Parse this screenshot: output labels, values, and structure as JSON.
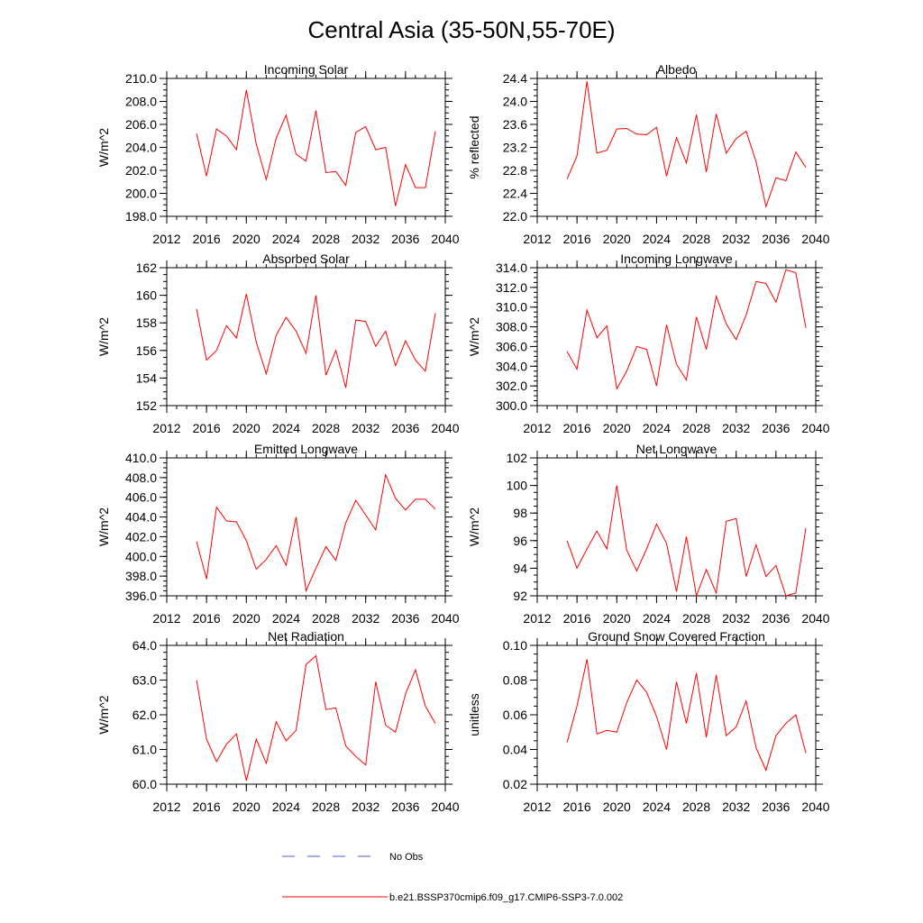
{
  "figure": {
    "title": "Central Asia (35-50N,55-70E)",
    "line_color": "#ff0000",
    "obs_color": "#4d5dd6"
  },
  "legend": {
    "items": [
      {
        "label": "No Obs",
        "style": "dashed",
        "color": "#4d5dd6"
      },
      {
        "label": "b.e21.BSSP370cmip6.f09_g17.CMIP6-SSP3-7.0.002",
        "style": "solid",
        "color": "#ff0000"
      }
    ]
  },
  "chart_data": [
    {
      "type": "line",
      "title": "Incoming Solar",
      "xlabel": "",
      "ylabel": "W/m^2",
      "xlim": [
        2012,
        2040
      ],
      "ylim": [
        198,
        210
      ],
      "xticks": [
        2012,
        2016,
        2020,
        2024,
        2028,
        2032,
        2036,
        2040
      ],
      "xtick_labels": [
        "2012",
        "2016",
        "2020",
        "2024",
        "2028",
        "2032",
        "2036",
        "2040"
      ],
      "yticks": [
        198,
        200,
        202,
        204,
        206,
        208,
        210
      ],
      "ytick_labels": [
        "198.0",
        "200.0",
        "202.0",
        "204.0",
        "206.0",
        "208.0",
        "210.0"
      ],
      "yminor": 0.5,
      "x": [
        2015,
        2016,
        2017,
        2018,
        2019,
        2020,
        2021,
        2022,
        2023,
        2024,
        2025,
        2026,
        2027,
        2028,
        2029,
        2030,
        2031,
        2032,
        2033,
        2034,
        2035,
        2036,
        2037,
        2038,
        2039
      ],
      "series": [
        {
          "name": "b.e21.BSSP370cmip6.f09_g17.CMIP6-SSP3-7.0.002",
          "values": [
            205.2,
            201.5,
            205.6,
            205.0,
            203.8,
            209.0,
            204.3,
            201.2,
            204.8,
            206.8,
            203.4,
            202.8,
            207.2,
            201.8,
            201.9,
            200.7,
            205.3,
            205.8,
            203.8,
            204.0,
            198.9,
            202.5,
            200.5,
            200.5,
            205.4
          ]
        }
      ]
    },
    {
      "type": "line",
      "title": "Albedo",
      "xlabel": "",
      "ylabel": "% reflected",
      "xlim": [
        2012,
        2040
      ],
      "ylim": [
        22.0,
        24.4
      ],
      "xticks": [
        2012,
        2016,
        2020,
        2024,
        2028,
        2032,
        2036,
        2040
      ],
      "xtick_labels": [
        "2012",
        "2016",
        "2020",
        "2024",
        "2028",
        "2032",
        "2036",
        "2040"
      ],
      "yticks": [
        22.0,
        22.4,
        22.8,
        23.2,
        23.6,
        24.0,
        24.4
      ],
      "ytick_labels": [
        "22.0",
        "22.4",
        "22.8",
        "23.2",
        "23.6",
        "24.0",
        "24.4"
      ],
      "yminor": 0.1,
      "x": [
        2015,
        2016,
        2017,
        2018,
        2019,
        2020,
        2021,
        2022,
        2023,
        2024,
        2025,
        2026,
        2027,
        2028,
        2029,
        2030,
        2031,
        2032,
        2033,
        2034,
        2035,
        2036,
        2037,
        2038,
        2039
      ],
      "series": [
        {
          "name": "b.e21.BSSP370cmip6.f09_g17.CMIP6-SSP3-7.0.002",
          "values": [
            22.65,
            23.05,
            24.35,
            23.1,
            23.15,
            23.52,
            23.53,
            23.43,
            23.42,
            23.55,
            22.7,
            23.37,
            22.93,
            23.77,
            22.77,
            23.78,
            23.1,
            23.35,
            23.48,
            22.95,
            22.17,
            22.67,
            22.62,
            23.12,
            22.85
          ]
        }
      ]
    },
    {
      "type": "line",
      "title": "Absorbed Solar",
      "xlabel": "",
      "ylabel": "W/m^2",
      "xlim": [
        2012,
        2040
      ],
      "ylim": [
        152,
        162
      ],
      "xticks": [
        2012,
        2016,
        2020,
        2024,
        2028,
        2032,
        2036,
        2040
      ],
      "xtick_labels": [
        "2012",
        "2016",
        "2020",
        "2024",
        "2028",
        "2032",
        "2036",
        "2040"
      ],
      "yticks": [
        152,
        154,
        156,
        158,
        160,
        162
      ],
      "ytick_labels": [
        "152",
        "154",
        "156",
        "158",
        "160",
        "162"
      ],
      "yminor": 0.5,
      "x": [
        2015,
        2016,
        2017,
        2018,
        2019,
        2020,
        2021,
        2022,
        2023,
        2024,
        2025,
        2026,
        2027,
        2028,
        2029,
        2030,
        2031,
        2032,
        2033,
        2034,
        2035,
        2036,
        2037,
        2038,
        2039
      ],
      "series": [
        {
          "name": "b.e21.BSSP370cmip6.f09_g17.CMIP6-SSP3-7.0.002",
          "values": [
            159.0,
            155.3,
            156.0,
            157.8,
            156.9,
            160.1,
            156.6,
            154.3,
            157.1,
            158.4,
            157.4,
            155.8,
            160.0,
            154.2,
            156.0,
            153.3,
            158.2,
            158.1,
            156.3,
            157.4,
            154.9,
            156.7,
            155.3,
            154.5,
            158.7
          ]
        }
      ]
    },
    {
      "type": "line",
      "title": "Incoming Longwave",
      "xlabel": "",
      "ylabel": "W/m^2",
      "xlim": [
        2012,
        2040
      ],
      "ylim": [
        300,
        314
      ],
      "xticks": [
        2012,
        2016,
        2020,
        2024,
        2028,
        2032,
        2036,
        2040
      ],
      "xtick_labels": [
        "2012",
        "2016",
        "2020",
        "2024",
        "2028",
        "2032",
        "2036",
        "2040"
      ],
      "yticks": [
        300,
        302,
        304,
        306,
        308,
        310,
        312,
        314
      ],
      "ytick_labels": [
        "300.0",
        "302.0",
        "304.0",
        "306.0",
        "308.0",
        "310.0",
        "312.0",
        "314.0"
      ],
      "yminor": 0.5,
      "x": [
        2015,
        2016,
        2017,
        2018,
        2019,
        2020,
        2021,
        2022,
        2023,
        2024,
        2025,
        2026,
        2027,
        2028,
        2029,
        2030,
        2031,
        2032,
        2033,
        2034,
        2035,
        2036,
        2037,
        2038,
        2039
      ],
      "series": [
        {
          "name": "b.e21.BSSP370cmip6.f09_g17.CMIP6-SSP3-7.0.002",
          "values": [
            305.5,
            303.7,
            309.7,
            306.9,
            308.1,
            301.7,
            303.5,
            306.0,
            305.7,
            302.0,
            308.2,
            304.2,
            302.6,
            309.0,
            305.7,
            311.1,
            308.3,
            306.7,
            309.2,
            312.6,
            312.4,
            310.5,
            313.8,
            313.5,
            307.9
          ]
        }
      ]
    },
    {
      "type": "line",
      "title": "Emitted Longwave",
      "xlabel": "",
      "ylabel": "W/m^2",
      "xlim": [
        2012,
        2040
      ],
      "ylim": [
        396,
        410
      ],
      "xticks": [
        2012,
        2016,
        2020,
        2024,
        2028,
        2032,
        2036,
        2040
      ],
      "xtick_labels": [
        "2012",
        "2016",
        "2020",
        "2024",
        "2028",
        "2032",
        "2036",
        "2040"
      ],
      "yticks": [
        396,
        398,
        400,
        402,
        404,
        406,
        408,
        410
      ],
      "ytick_labels": [
        "396.0",
        "398.0",
        "400.0",
        "402.0",
        "404.0",
        "406.0",
        "408.0",
        "410.0"
      ],
      "yminor": 0.5,
      "x": [
        2015,
        2016,
        2017,
        2018,
        2019,
        2020,
        2021,
        2022,
        2023,
        2024,
        2025,
        2026,
        2027,
        2028,
        2029,
        2030,
        2031,
        2032,
        2033,
        2034,
        2035,
        2036,
        2037,
        2038,
        2039
      ],
      "series": [
        {
          "name": "b.e21.BSSP370cmip6.f09_g17.CMIP6-SSP3-7.0.002",
          "values": [
            401.5,
            397.7,
            405.0,
            403.6,
            403.5,
            401.6,
            398.7,
            399.7,
            401.1,
            399.1,
            404.0,
            396.5,
            398.8,
            401.0,
            399.6,
            403.4,
            405.7,
            404.2,
            402.7,
            408.3,
            405.9,
            404.7,
            405.8,
            405.8,
            404.8
          ]
        }
      ]
    },
    {
      "type": "line",
      "title": "Net Longwave",
      "xlabel": "",
      "ylabel": "W/m^2",
      "xlim": [
        2012,
        2040
      ],
      "ylim": [
        92,
        102
      ],
      "xticks": [
        2012,
        2016,
        2020,
        2024,
        2028,
        2032,
        2036,
        2040
      ],
      "xtick_labels": [
        "2012",
        "2016",
        "2020",
        "2024",
        "2028",
        "2032",
        "2036",
        "2040"
      ],
      "yticks": [
        92,
        94,
        96,
        98,
        100,
        102
      ],
      "ytick_labels": [
        "92",
        "94",
        "96",
        "98",
        "100",
        "102"
      ],
      "yminor": 0.5,
      "x": [
        2015,
        2016,
        2017,
        2018,
        2019,
        2020,
        2021,
        2022,
        2023,
        2024,
        2025,
        2026,
        2027,
        2028,
        2029,
        2030,
        2031,
        2032,
        2033,
        2034,
        2035,
        2036,
        2037,
        2038,
        2039
      ],
      "series": [
        {
          "name": "b.e21.BSSP370cmip6.f09_g17.CMIP6-SSP3-7.0.002",
          "values": [
            96.0,
            94.0,
            95.4,
            96.7,
            95.4,
            100.0,
            95.3,
            93.8,
            95.4,
            97.2,
            95.8,
            92.3,
            96.3,
            92.0,
            93.9,
            92.2,
            97.4,
            97.6,
            93.4,
            95.7,
            93.4,
            94.2,
            92.0,
            92.2,
            96.9
          ]
        }
      ]
    },
    {
      "type": "line",
      "title": "Net Radiation",
      "xlabel": "",
      "ylabel": "W/m^2",
      "xlim": [
        2012,
        2040
      ],
      "ylim": [
        60,
        64
      ],
      "xticks": [
        2012,
        2016,
        2020,
        2024,
        2028,
        2032,
        2036,
        2040
      ],
      "xtick_labels": [
        "2012",
        "2016",
        "2020",
        "2024",
        "2028",
        "2032",
        "2036",
        "2040"
      ],
      "yticks": [
        60,
        61,
        62,
        63,
        64
      ],
      "ytick_labels": [
        "60.0",
        "61.0",
        "62.0",
        "63.0",
        "64.0"
      ],
      "yminor": 0.2,
      "x": [
        2015,
        2016,
        2017,
        2018,
        2019,
        2020,
        2021,
        2022,
        2023,
        2024,
        2025,
        2026,
        2027,
        2028,
        2029,
        2030,
        2031,
        2032,
        2033,
        2034,
        2035,
        2036,
        2037,
        2038,
        2039
      ],
      "series": [
        {
          "name": "b.e21.BSSP370cmip6.f09_g17.CMIP6-SSP3-7.0.002",
          "values": [
            63.0,
            61.3,
            60.65,
            61.15,
            61.45,
            60.1,
            61.3,
            60.6,
            61.8,
            61.25,
            61.55,
            63.45,
            63.7,
            62.15,
            62.2,
            61.1,
            60.8,
            60.55,
            62.95,
            61.7,
            61.5,
            62.6,
            63.3,
            62.25,
            61.75
          ]
        }
      ]
    },
    {
      "type": "line",
      "title": "Ground Snow Covered Fraction",
      "xlabel": "",
      "ylabel": "unitless",
      "xlim": [
        2012,
        2040
      ],
      "ylim": [
        0.02,
        0.1
      ],
      "xticks": [
        2012,
        2016,
        2020,
        2024,
        2028,
        2032,
        2036,
        2040
      ],
      "xtick_labels": [
        "2012",
        "2016",
        "2020",
        "2024",
        "2028",
        "2032",
        "2036",
        "2040"
      ],
      "yticks": [
        0.02,
        0.04,
        0.06,
        0.08,
        0.1
      ],
      "ytick_labels": [
        "0.02",
        "0.04",
        "0.06",
        "0.08",
        "0.10"
      ],
      "yminor": 0.005,
      "x": [
        2015,
        2016,
        2017,
        2018,
        2019,
        2020,
        2021,
        2022,
        2023,
        2024,
        2025,
        2026,
        2027,
        2028,
        2029,
        2030,
        2031,
        2032,
        2033,
        2034,
        2035,
        2036,
        2037,
        2038,
        2039
      ],
      "series": [
        {
          "name": "b.e21.BSSP370cmip6.f09_g17.CMIP6-SSP3-7.0.002",
          "values": [
            0.044,
            0.065,
            0.092,
            0.049,
            0.051,
            0.05,
            0.067,
            0.08,
            0.073,
            0.059,
            0.04,
            0.079,
            0.055,
            0.084,
            0.047,
            0.083,
            0.048,
            0.053,
            0.068,
            0.041,
            0.028,
            0.048,
            0.055,
            0.06,
            0.038
          ]
        }
      ]
    }
  ]
}
